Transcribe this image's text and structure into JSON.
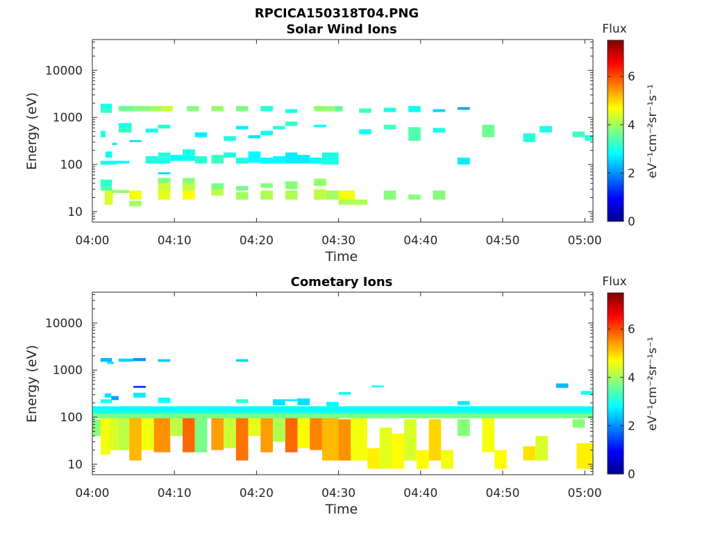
{
  "figure_title": "RPCICA150318T04.PNG",
  "colorbar": {
    "label": "Flux",
    "unit_label": "eV⁻¹cm⁻²sr⁻¹s⁻¹",
    "ticks": [
      "0",
      "2",
      "4",
      "6"
    ],
    "range": [
      0,
      7.5
    ],
    "colormap": "jet"
  },
  "chart_data": [
    {
      "type": "heatmap",
      "title": "Solar Wind Ions",
      "xlabel": "Time",
      "ylabel": "Energy (eV)",
      "xlim": [
        "04:00",
        "05:01"
      ],
      "xticks": [
        "04:00",
        "04:10",
        "04:20",
        "04:30",
        "04:40",
        "04:50",
        "05:00"
      ],
      "ylim": [
        6,
        45000
      ],
      "yscale": "log",
      "yticks": [
        "10",
        "100",
        "1000",
        "10000"
      ],
      "cells_columns": [
        "t_start_min",
        "t_end_min",
        "e_low_eV",
        "e_high_eV",
        "flux"
      ],
      "cells": [
        [
          1.0,
          2.4,
          1560,
          1950,
          3.0
        ],
        [
          1.0,
          2.4,
          1250,
          1560,
          3.2
        ],
        [
          3.2,
          5.0,
          1350,
          1750,
          3.6
        ],
        [
          5.0,
          7.0,
          1350,
          1750,
          3.8
        ],
        [
          7.0,
          8.5,
          1350,
          1750,
          4.0
        ],
        [
          8.5,
          9.8,
          1350,
          1750,
          4.3
        ],
        [
          11.5,
          13.0,
          1350,
          1750,
          3.8
        ],
        [
          14.5,
          16.0,
          1350,
          1750,
          3.9
        ],
        [
          17.5,
          19.0,
          1350,
          1750,
          3.7
        ],
        [
          20.5,
          22.0,
          1350,
          1750,
          3.1
        ],
        [
          23.5,
          25.0,
          1250,
          1500,
          3.0
        ],
        [
          27.0,
          29.5,
          1350,
          1750,
          3.9
        ],
        [
          29.5,
          30.5,
          1350,
          1750,
          3.5
        ],
        [
          32.5,
          34.0,
          1250,
          1550,
          3.3
        ],
        [
          35.5,
          37.0,
          1300,
          1600,
          3.0
        ],
        [
          38.5,
          40.0,
          1300,
          1750,
          2.9
        ],
        [
          41.5,
          43.0,
          1300,
          1500,
          2.5
        ],
        [
          44.5,
          46.0,
          1450,
          1650,
          2.2
        ],
        [
          1.0,
          1.6,
          380,
          520,
          3.0
        ],
        [
          3.2,
          4.8,
          600,
          760,
          3.0
        ],
        [
          3.2,
          4.8,
          480,
          600,
          3.2
        ],
        [
          6.5,
          8.0,
          480,
          580,
          2.9
        ],
        [
          8.0,
          9.5,
          580,
          700,
          3.1
        ],
        [
          12.5,
          14.0,
          380,
          480,
          2.7
        ],
        [
          16.0,
          17.5,
          320,
          400,
          3.0
        ],
        [
          17.5,
          19.0,
          560,
          660,
          2.7
        ],
        [
          19.0,
          20.5,
          360,
          420,
          2.6
        ],
        [
          20.5,
          22.0,
          420,
          520,
          2.9
        ],
        [
          22.0,
          23.5,
          560,
          660,
          3.1
        ],
        [
          23.5,
          25.0,
          660,
          820,
          3.2
        ],
        [
          27.0,
          28.5,
          620,
          700,
          2.8
        ],
        [
          32.5,
          34.0,
          440,
          560,
          2.9
        ],
        [
          35.5,
          37.0,
          560,
          700,
          3.3
        ],
        [
          38.5,
          40.0,
          320,
          620,
          3.4
        ],
        [
          41.5,
          43.0,
          480,
          600,
          3.0
        ],
        [
          47.5,
          49.0,
          380,
          700,
          3.6
        ],
        [
          52.5,
          54.0,
          300,
          460,
          3.1
        ],
        [
          54.5,
          56.0,
          480,
          660,
          3.0
        ],
        [
          58.5,
          60.0,
          380,
          500,
          3.3
        ],
        [
          60.0,
          61.0,
          320,
          420,
          3.1
        ],
        [
          4.5,
          6.0,
          300,
          330,
          2.6
        ],
        [
          2.4,
          3.0,
          260,
          290,
          2.7
        ],
        [
          1.0,
          3.0,
          100,
          120,
          2.9
        ],
        [
          3.0,
          4.5,
          105,
          120,
          2.8
        ],
        [
          1.6,
          2.4,
          140,
          190,
          2.9
        ],
        [
          6.5,
          8.0,
          105,
          150,
          3.0
        ],
        [
          8.0,
          9.5,
          140,
          180,
          3.1
        ],
        [
          8.0,
          9.5,
          105,
          140,
          3.0
        ],
        [
          9.5,
          11.0,
          120,
          160,
          2.8
        ],
        [
          11.0,
          12.5,
          160,
          210,
          3.0
        ],
        [
          11.0,
          12.5,
          120,
          160,
          2.9
        ],
        [
          12.5,
          14.0,
          105,
          150,
          3.1
        ],
        [
          14.5,
          16.0,
          105,
          160,
          3.2
        ],
        [
          16.0,
          17.5,
          140,
          180,
          3.0
        ],
        [
          17.5,
          19.0,
          105,
          140,
          3.0
        ],
        [
          19.0,
          20.5,
          110,
          190,
          2.8
        ],
        [
          20.5,
          22.0,
          105,
          140,
          2.8
        ],
        [
          22.0,
          23.5,
          105,
          150,
          2.8
        ],
        [
          23.5,
          25.0,
          105,
          180,
          2.7
        ],
        [
          25.0,
          26.5,
          105,
          160,
          2.7
        ],
        [
          26.5,
          28.0,
          105,
          140,
          2.8
        ],
        [
          28.0,
          30.0,
          100,
          180,
          3.0
        ],
        [
          44.5,
          46.0,
          100,
          140,
          2.7
        ],
        [
          8.0,
          9.5,
          62,
          68,
          2.5
        ],
        [
          1.0,
          2.4,
          35,
          48,
          3.2
        ],
        [
          1.0,
          2.4,
          28,
          35,
          3.4
        ],
        [
          1.5,
          2.5,
          14,
          28,
          4.4
        ],
        [
          2.4,
          4.5,
          25,
          29,
          3.9
        ],
        [
          4.5,
          6.0,
          18,
          28,
          4.6
        ],
        [
          4.5,
          6.0,
          13,
          17,
          4.0
        ],
        [
          8.0,
          9.5,
          40,
          52,
          3.7
        ],
        [
          8.0,
          9.5,
          28,
          40,
          4.3
        ],
        [
          8.0,
          9.5,
          18,
          28,
          4.5
        ],
        [
          11.0,
          12.5,
          40,
          52,
          3.8
        ],
        [
          11.0,
          12.5,
          28,
          40,
          4.2
        ],
        [
          11.0,
          12.5,
          18,
          28,
          4.7
        ],
        [
          14.5,
          16.0,
          30,
          40,
          3.7
        ],
        [
          14.5,
          16.0,
          22,
          30,
          4.2
        ],
        [
          17.5,
          19.0,
          28,
          35,
          3.7
        ],
        [
          17.5,
          19.0,
          18,
          26,
          4.0
        ],
        [
          20.5,
          22.0,
          32,
          40,
          3.8
        ],
        [
          20.5,
          22.0,
          18,
          28,
          4.1
        ],
        [
          23.5,
          25.0,
          30,
          44,
          3.8
        ],
        [
          23.5,
          25.0,
          18,
          28,
          4.1
        ],
        [
          27.0,
          28.5,
          35,
          50,
          3.9
        ],
        [
          27.0,
          28.5,
          18,
          30,
          4.2
        ],
        [
          28.5,
          30.0,
          18,
          28,
          4.0
        ],
        [
          30.0,
          32.0,
          18,
          28,
          4.6
        ],
        [
          30.0,
          33.5,
          14,
          18,
          4.1
        ],
        [
          35.5,
          37.0,
          18,
          28,
          3.8
        ],
        [
          38.5,
          40.0,
          18,
          23,
          3.8
        ],
        [
          41.5,
          43.0,
          18,
          28,
          3.8
        ]
      ]
    },
    {
      "type": "heatmap",
      "title": "Cometary Ions",
      "xlabel": "Time",
      "ylabel": "Energy (eV)",
      "xlim": [
        "04:00",
        "05:01"
      ],
      "xticks": [
        "04:00",
        "04:10",
        "04:20",
        "04:30",
        "04:40",
        "04:50",
        "05:00"
      ],
      "ylim": [
        6,
        45000
      ],
      "yscale": "log",
      "yticks": [
        "10",
        "100",
        "1000",
        "10000"
      ],
      "cells_columns": [
        "t_start_min",
        "t_end_min",
        "e_low_eV",
        "e_high_eV",
        "flux"
      ],
      "cells": [
        [
          1.0,
          2.4,
          1500,
          1800,
          2.3
        ],
        [
          1.8,
          2.6,
          1350,
          1500,
          2.6
        ],
        [
          3.2,
          5.0,
          1500,
          1750,
          2.5
        ],
        [
          5.0,
          6.5,
          1550,
          1800,
          2.0
        ],
        [
          8.0,
          9.5,
          1500,
          1700,
          2.4
        ],
        [
          17.5,
          19.0,
          1500,
          1700,
          2.5
        ],
        [
          5.0,
          6.5,
          420,
          460,
          1.3
        ],
        [
          1.5,
          2.3,
          260,
          320,
          2.6
        ],
        [
          2.3,
          3.2,
          230,
          280,
          2.1
        ],
        [
          5.0,
          6.5,
          260,
          330,
          2.7
        ],
        [
          8.0,
          9.5,
          200,
          260,
          2.9
        ],
        [
          17.5,
          19.0,
          200,
          240,
          3.2
        ],
        [
          30.0,
          31.5,
          300,
          340,
          2.8
        ],
        [
          34.0,
          35.5,
          430,
          470,
          2.8
        ],
        [
          56.5,
          58.0,
          420,
          520,
          2.3
        ],
        [
          59.5,
          61.0,
          300,
          360,
          3.0
        ],
        [
          1.0,
          2.4,
          200,
          240,
          3.0
        ],
        [
          22.0,
          23.5,
          180,
          240,
          2.6
        ],
        [
          23.5,
          25.0,
          220,
          240,
          2.7
        ],
        [
          25.0,
          26.5,
          180,
          250,
          2.6
        ],
        [
          28.5,
          30.0,
          150,
          210,
          2.8
        ],
        [
          41.5,
          43.0,
          150,
          170,
          2.6
        ],
        [
          44.5,
          46.0,
          180,
          220,
          2.7
        ],
        [
          0.0,
          1.0,
          40,
          90,
          3.8
        ],
        [
          1.0,
          2.2,
          16,
          120,
          4.6
        ],
        [
          2.2,
          3.2,
          20,
          120,
          4.4
        ],
        [
          3.2,
          4.5,
          20,
          110,
          4.2
        ],
        [
          4.5,
          6.0,
          12,
          110,
          5.2
        ],
        [
          6.0,
          7.5,
          20,
          110,
          4.6
        ],
        [
          7.5,
          9.5,
          18,
          110,
          5.5
        ],
        [
          9.5,
          11.0,
          40,
          110,
          4.2
        ],
        [
          11.0,
          12.5,
          18,
          120,
          5.8
        ],
        [
          12.5,
          14.0,
          18,
          110,
          3.7
        ],
        [
          14.5,
          16.0,
          20,
          110,
          5.4
        ],
        [
          16.0,
          17.5,
          22,
          110,
          4.3
        ],
        [
          17.5,
          19.0,
          12,
          110,
          5.7
        ],
        [
          19.0,
          20.5,
          40,
          110,
          4.5
        ],
        [
          20.5,
          22.0,
          18,
          110,
          5.4
        ],
        [
          22.0,
          23.5,
          30,
          110,
          4.1
        ],
        [
          23.5,
          25.0,
          18,
          110,
          5.8
        ],
        [
          25.0,
          26.5,
          22,
          110,
          4.7
        ],
        [
          26.5,
          28.0,
          20,
          110,
          5.6
        ],
        [
          28.0,
          30.0,
          12,
          110,
          5.2
        ],
        [
          30.0,
          31.5,
          12,
          90,
          5.5
        ],
        [
          31.5,
          33.5,
          12,
          100,
          4.6
        ],
        [
          33.5,
          35.0,
          8,
          22,
          4.8
        ],
        [
          35.0,
          36.5,
          8,
          60,
          4.5
        ],
        [
          36.5,
          38.0,
          8,
          45,
          4.7
        ],
        [
          38.0,
          39.5,
          12,
          90,
          4.4
        ],
        [
          39.5,
          41.0,
          8,
          20,
          4.7
        ],
        [
          41.0,
          42.5,
          12,
          90,
          5.0
        ],
        [
          42.5,
          44.0,
          8,
          20,
          4.6
        ],
        [
          44.5,
          46.0,
          40,
          90,
          3.8
        ],
        [
          47.5,
          49.0,
          18,
          95,
          4.6
        ],
        [
          49.0,
          50.5,
          8,
          20,
          4.7
        ],
        [
          52.5,
          54.0,
          12,
          24,
          4.9
        ],
        [
          54.0,
          55.5,
          12,
          40,
          4.4
        ],
        [
          58.5,
          60.0,
          60,
          90,
          3.8
        ],
        [
          59.0,
          61.0,
          8,
          28,
          4.8
        ],
        [
          0.0,
          61.0,
          120,
          170,
          2.9
        ],
        [
          0.0,
          61.0,
          95,
          120,
          3.7
        ]
      ]
    }
  ]
}
